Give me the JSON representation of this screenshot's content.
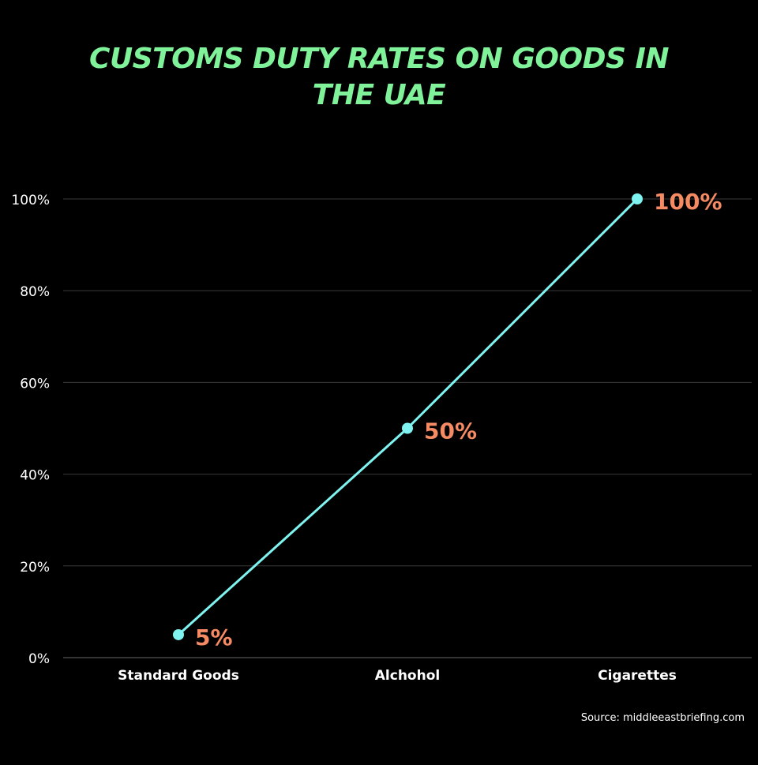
{
  "title_lines": [
    "CUSTOMS DUTY RATES ON GOODS IN",
    "THE UAE"
  ],
  "source": "Source: middleeastbriefing.com",
  "colors": {
    "background": "#000000",
    "title": "#7ff29a",
    "line": "#7ef3f0",
    "data_label": "#f58a63",
    "grid": "#3a3a3a",
    "text": "#ffffff"
  },
  "chart_data": {
    "type": "line",
    "title": "CUSTOMS DUTY RATES ON GOODS IN THE UAE",
    "categories": [
      "Standard Goods",
      "Alchohol",
      "Cigarettes"
    ],
    "series": [
      {
        "values": [
          5,
          50,
          100
        ],
        "labels": [
          "5%",
          "50%",
          "100%"
        ]
      }
    ],
    "yticks": [
      {
        "value": 0,
        "label": "0%"
      },
      {
        "value": 20,
        "label": "20%"
      },
      {
        "value": 40,
        "label": "40%"
      },
      {
        "value": 60,
        "label": "60%"
      },
      {
        "value": 80,
        "label": "80%"
      },
      {
        "value": 100,
        "label": "100%"
      }
    ],
    "ylim": [
      0,
      100
    ],
    "grid": true,
    "legend": "none"
  }
}
